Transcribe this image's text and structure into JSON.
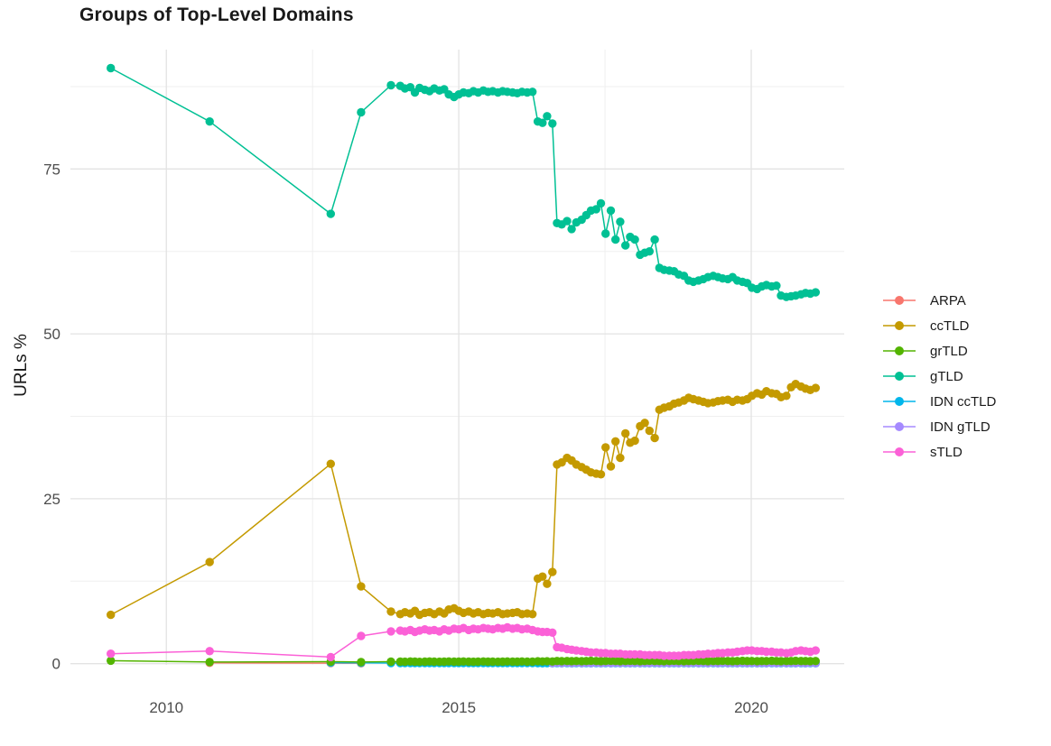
{
  "title": "Groups of Top-Level Domains",
  "axes": {
    "y_label": "URLs %",
    "x_label": ""
  },
  "chart_data": {
    "type": "line",
    "title": "Groups of Top-Level Domains",
    "xlabel": "",
    "ylabel": "URLs %",
    "grid": true,
    "legend_position": "right",
    "xlim": [
      2008.36,
      2021.59
    ],
    "ylim": [
      -0.18,
      93.1
    ],
    "x_ticks": [
      2010,
      2015,
      2020
    ],
    "x_tick_labels": [
      "2010",
      "2015",
      "2020"
    ],
    "x_minor_ticks": [
      2012.5,
      2017.5
    ],
    "y_ticks": [
      0,
      25,
      50,
      75
    ],
    "y_tick_labels": [
      "0",
      "25",
      "50",
      "75"
    ],
    "y_minor_ticks": [
      12.5,
      37.5,
      62.5,
      87.5
    ],
    "colors": {
      "grid_major": "#e3e3e3",
      "grid_minor": "#efefef",
      "tick_text": "#4d4d4d",
      "title_text": "#1a1a1a",
      "background": "#ffffff"
    },
    "x": [
      2009.05,
      2010.74,
      2012.81,
      2013.33,
      2013.84,
      2014.0,
      2014.08,
      2014.17,
      2014.25,
      2014.33,
      2014.42,
      2014.5,
      2014.58,
      2014.67,
      2014.75,
      2014.83,
      2014.92,
      2015.0,
      2015.08,
      2015.17,
      2015.25,
      2015.33,
      2015.42,
      2015.5,
      2015.58,
      2015.67,
      2015.75,
      2015.83,
      2015.92,
      2016.0,
      2016.08,
      2016.17,
      2016.26,
      2016.35,
      2016.43,
      2016.51,
      2016.6,
      2016.68,
      2016.76,
      2016.85,
      2016.93,
      2017.01,
      2017.1,
      2017.18,
      2017.26,
      2017.35,
      2017.43,
      2017.51,
      2017.6,
      2017.68,
      2017.76,
      2017.85,
      2017.93,
      2018.01,
      2018.1,
      2018.18,
      2018.26,
      2018.35,
      2018.43,
      2018.51,
      2018.6,
      2018.68,
      2018.76,
      2018.85,
      2018.93,
      2019.01,
      2019.1,
      2019.18,
      2019.26,
      2019.35,
      2019.43,
      2019.51,
      2019.6,
      2019.68,
      2019.76,
      2019.85,
      2019.93,
      2020.01,
      2020.1,
      2020.18,
      2020.26,
      2020.35,
      2020.43,
      2020.51,
      2020.6,
      2020.68,
      2020.76,
      2020.85,
      2020.93,
      2021.01,
      2021.1
    ],
    "draw_order": [
      0,
      4,
      5,
      2,
      1,
      3,
      6
    ],
    "series": [
      {
        "name": "ARPA",
        "color": "#F8766D",
        "points": [
          [
            2010.74,
            0.12
          ],
          [
            2012.81,
            0.08
          ],
          [
            2013.33,
            0.05
          ]
        ]
      },
      {
        "name": "ccTLD",
        "color": "#C49A00",
        "start_index": 0,
        "values": [
          7.4,
          15.4,
          30.3,
          11.7,
          7.9,
          7.5,
          7.8,
          7.6,
          8.0,
          7.4,
          7.7,
          7.8,
          7.5,
          7.9,
          7.6,
          8.2,
          8.4,
          8.0,
          7.7,
          7.9,
          7.6,
          7.8,
          7.5,
          7.7,
          7.6,
          7.8,
          7.5,
          7.6,
          7.7,
          7.8,
          7.5,
          7.6,
          7.5,
          12.9,
          13.2,
          12.1,
          13.9,
          30.2,
          30.5,
          31.2,
          30.8,
          30.2,
          29.8,
          29.4,
          29.0,
          28.8,
          28.7,
          32.8,
          29.9,
          33.7,
          31.2,
          34.9,
          33.5,
          33.8,
          36.0,
          36.5,
          35.3,
          34.2,
          38.5,
          38.8,
          39.0,
          39.4,
          39.6,
          39.9,
          40.3,
          40.1,
          39.9,
          39.7,
          39.5,
          39.6,
          39.8,
          39.9,
          40.0,
          39.7,
          40.0,
          39.9,
          40.1,
          40.6,
          41.0,
          40.8,
          41.3,
          41.0,
          40.9,
          40.4,
          40.6,
          41.9,
          42.4,
          42.0,
          41.7,
          41.5,
          41.8
        ]
      },
      {
        "name": "grTLD",
        "color": "#53B400",
        "start_index": 0,
        "values": [
          0.45,
          0.25,
          0.3,
          0.25,
          0.3,
          0.3,
          0.28,
          0.32,
          0.3,
          0.27,
          0.3,
          0.32,
          0.3,
          0.28,
          0.3,
          0.32,
          0.3,
          0.3,
          0.32,
          0.3,
          0.28,
          0.3,
          0.32,
          0.3,
          0.3,
          0.28,
          0.3,
          0.32,
          0.3,
          0.3,
          0.32,
          0.3,
          0.3,
          0.35,
          0.33,
          0.35,
          0.33,
          0.4,
          0.38,
          0.4,
          0.38,
          0.4,
          0.38,
          0.4,
          0.42,
          0.4,
          0.38,
          0.4,
          0.42,
          0.4,
          0.38,
          0.4,
          0.42,
          0.4,
          0.38,
          0.4,
          0.42,
          0.4,
          0.4,
          0.38,
          0.4,
          0.42,
          0.4,
          0.38,
          0.4,
          0.4,
          0.42,
          0.4,
          0.38,
          0.4,
          0.4,
          0.42,
          0.4,
          0.38,
          0.4,
          0.42,
          0.4,
          0.4,
          0.38,
          0.4,
          0.4,
          0.42,
          0.4,
          0.38,
          0.4,
          0.4,
          0.42,
          0.4,
          0.4,
          0.38,
          0.4
        ]
      },
      {
        "name": "gTLD",
        "color": "#00C094",
        "start_index": 0,
        "values": [
          90.3,
          82.2,
          68.2,
          83.6,
          87.7,
          87.6,
          87.2,
          87.4,
          86.6,
          87.3,
          87.0,
          86.8,
          87.2,
          86.9,
          87.1,
          86.3,
          85.9,
          86.3,
          86.6,
          86.5,
          86.8,
          86.6,
          86.9,
          86.7,
          86.8,
          86.6,
          86.8,
          86.7,
          86.6,
          86.5,
          86.7,
          86.6,
          86.7,
          82.2,
          82.0,
          83.0,
          81.9,
          66.8,
          66.6,
          67.1,
          65.9,
          66.9,
          67.3,
          68.0,
          68.7,
          68.9,
          69.8,
          65.2,
          68.7,
          64.3,
          67.0,
          63.4,
          64.7,
          64.3,
          62.0,
          62.3,
          62.5,
          64.3,
          60.0,
          59.7,
          59.6,
          59.5,
          59.0,
          58.8,
          58.1,
          57.9,
          58.1,
          58.3,
          58.6,
          58.8,
          58.6,
          58.4,
          58.3,
          58.6,
          58.1,
          57.9,
          57.7,
          57.0,
          56.8,
          57.2,
          57.4,
          57.2,
          57.3,
          55.8,
          55.6,
          55.7,
          55.8,
          56.0,
          56.2,
          56.1,
          56.3
        ]
      },
      {
        "name": "IDN ccTLD",
        "color": "#00B6EB",
        "start_index": 2,
        "values": [
          0.15,
          0.12,
          0.1,
          0.1,
          0.08,
          0.1,
          0.08,
          0.1,
          0.08,
          0.1,
          0.08,
          0.1,
          0.08,
          0.1,
          0.08,
          0.1,
          0.08,
          0.1,
          0.08,
          0.1,
          0.08,
          0.1,
          0.08,
          0.1,
          0.08,
          0.1,
          0.08,
          0.1,
          0.08,
          0.1,
          0.08,
          0.06,
          0.05,
          0.06,
          0.05,
          0.06,
          0.05,
          0.06,
          0.05,
          0.06,
          0.05,
          0.06,
          0.05,
          0.06,
          0.05,
          0.06,
          0.05,
          0.06,
          0.05,
          0.06,
          0.05,
          0.06,
          0.05,
          0.06,
          0.05,
          0.06,
          0.05,
          0.06,
          0.05,
          0.06,
          0.05,
          0.06,
          0.05,
          0.06,
          0.05,
          0.06,
          0.05,
          0.06,
          0.05,
          0.06,
          0.05,
          0.06,
          0.05,
          0.06,
          0.05,
          0.06,
          0.05,
          0.06,
          0.05,
          0.06,
          0.05,
          0.06,
          0.05,
          0.06,
          0.05,
          0.06,
          0.05,
          0.06,
          0.05
        ]
      },
      {
        "name": "IDN gTLD",
        "color": "#A58AFF",
        "start_index": 36,
        "values": [
          0.1,
          0.12,
          0.1,
          0.12,
          0.1,
          0.12,
          0.1,
          0.12,
          0.1,
          0.12,
          0.1,
          0.12,
          0.1,
          0.12,
          0.1,
          0.12,
          0.1,
          0.12,
          0.1,
          0.12,
          0.1,
          0.12,
          0.1,
          0.12,
          0.1,
          0.12,
          0.1,
          0.12,
          0.1,
          0.12,
          0.1,
          0.12,
          0.1,
          0.12,
          0.1,
          0.12,
          0.1,
          0.12,
          0.1,
          0.12,
          0.1,
          0.12,
          0.1,
          0.12,
          0.1,
          0.12,
          0.1,
          0.12,
          0.1,
          0.12,
          0.1,
          0.12,
          0.1,
          0.12,
          0.1
        ]
      },
      {
        "name": "sTLD",
        "color": "#FB61D7",
        "start_index": 0,
        "values": [
          1.5,
          1.9,
          1.0,
          4.2,
          4.9,
          5.0,
          4.9,
          5.1,
          4.8,
          5.0,
          5.2,
          5.0,
          5.1,
          4.9,
          5.2,
          5.0,
          5.3,
          5.2,
          5.4,
          5.1,
          5.3,
          5.2,
          5.4,
          5.3,
          5.2,
          5.4,
          5.3,
          5.5,
          5.3,
          5.4,
          5.2,
          5.3,
          5.1,
          4.9,
          4.8,
          4.8,
          4.7,
          2.5,
          2.4,
          2.2,
          2.1,
          2.0,
          1.9,
          1.8,
          1.7,
          1.7,
          1.6,
          1.6,
          1.5,
          1.5,
          1.5,
          1.4,
          1.4,
          1.4,
          1.4,
          1.3,
          1.3,
          1.3,
          1.3,
          1.2,
          1.2,
          1.2,
          1.2,
          1.3,
          1.3,
          1.3,
          1.4,
          1.4,
          1.5,
          1.5,
          1.6,
          1.6,
          1.7,
          1.7,
          1.8,
          1.9,
          2.0,
          2.0,
          1.9,
          1.9,
          1.8,
          1.8,
          1.7,
          1.7,
          1.6,
          1.7,
          1.9,
          2.0,
          1.9,
          1.8,
          2.0
        ]
      }
    ]
  },
  "legend": {
    "title": ""
  }
}
